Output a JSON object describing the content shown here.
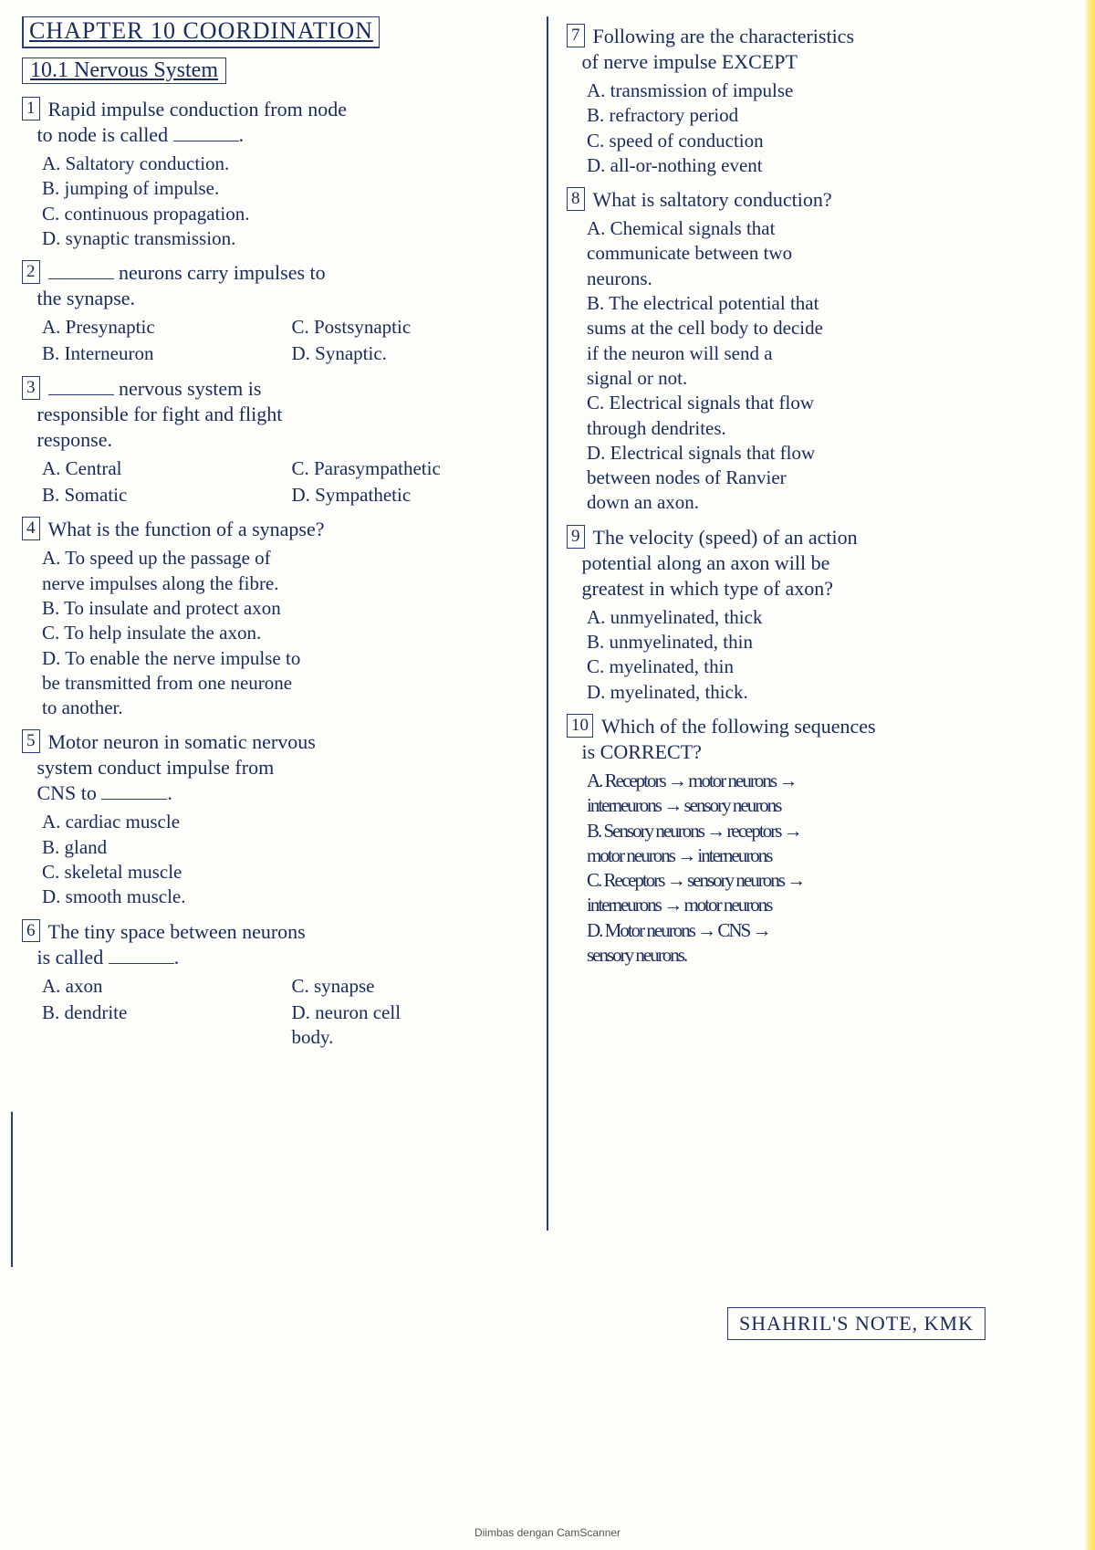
{
  "chapter_title": "CHAPTER 10   COORDINATION",
  "section_title": "10.1  Nervous System",
  "left": {
    "q1": {
      "num": "1",
      "text_a": "Rapid impulse conduction from node",
      "text_b": "to node is called",
      "opts": {
        "a": "A. Saltatory conduction.",
        "b": "B. jumping of impulse.",
        "c": "C. continuous propagation.",
        "d": "D. synaptic transmission."
      }
    },
    "q2": {
      "num": "2",
      "text_a": "",
      "text_b": "neurons carry impulses to",
      "text_c": "the synapse.",
      "opts": {
        "a": "A. Presynaptic",
        "c": "C. Postsynaptic",
        "b": "B. Interneuron",
        "d": "D. Synaptic."
      }
    },
    "q3": {
      "num": "3",
      "text_a": "",
      "text_b": "nervous system is",
      "text_c": "responsible for fight and flight",
      "text_d": "response.",
      "opts": {
        "a": "A. Central",
        "c": "C. Parasympathetic",
        "b": "B. Somatic",
        "d": "D. Sympathetic"
      }
    },
    "q4": {
      "num": "4",
      "text": "What is the function of a synapse?",
      "opts": {
        "a1": "A. To speed up the passage of",
        "a2": "    nerve impulses along the fibre.",
        "b": "B. To insulate and protect axon",
        "c": "C. To help insulate the axon.",
        "d1": "D. To enable the nerve impulse to",
        "d2": "    be transmitted from one neurone",
        "d3": "    to another."
      }
    },
    "q5": {
      "num": "5",
      "text_a": "Motor neuron in somatic nervous",
      "text_b": "system conduct impulse from",
      "text_c": "CNS to",
      "opts": {
        "a": "A. cardiac muscle",
        "b": "B. gland",
        "c": "C. skeletal muscle",
        "d": "D. smooth muscle."
      }
    },
    "q6": {
      "num": "6",
      "text_a": "The tiny space between neurons",
      "text_b": "is called",
      "opts": {
        "a": "A. axon",
        "c": "C. synapse",
        "b": "B. dendrite",
        "d1": "D. neuron cell",
        "d2": "    body."
      }
    }
  },
  "right": {
    "q7": {
      "num": "7",
      "text_a": "Following are the characteristics",
      "text_b": "of nerve impulse EXCEPT",
      "opts": {
        "a": "A. transmission of impulse",
        "b": "B. refractory period",
        "c": "C. speed of conduction",
        "d": "D. all-or-nothing event"
      }
    },
    "q8": {
      "num": "8",
      "text": "What is saltatory conduction?",
      "opts": {
        "a1": "A. Chemical signals that",
        "a2": "   communicate between two",
        "a3": "   neurons.",
        "b1": "B. The electrical potential that",
        "b2": "   sums at the cell body to decide",
        "b3": "   if the neuron will send a",
        "b4": "   signal or not.",
        "c1": "C. Electrical signals that flow",
        "c2": "   through dendrites.",
        "d1": "D. Electrical signals that flow",
        "d2": "   between nodes of Ranvier",
        "d3": "   down an axon."
      }
    },
    "q9": {
      "num": "9",
      "text_a": "The velocity (speed) of an action",
      "text_b": "potential along an axon will be",
      "text_c": "greatest in which type of axon?",
      "opts": {
        "a": "A. unmyelinated, thick",
        "b": "B. unmyelinated, thin",
        "c": "C. myelinated, thin",
        "d": "D. myelinated, thick."
      }
    },
    "q10": {
      "num": "10",
      "text_a": "Which of the following sequences",
      "text_b": "is CORRECT?",
      "opts": {
        "a1": "A. Receptors → motor neurons →",
        "a2": "   interneurons → sensory neurons",
        "b1": "B. Sensory neurons → receptors →",
        "b2": "   motor neurons → interneurons",
        "c1": "C. Receptors → sensory neurons →",
        "c2": "   interneurons → motor neurons",
        "d1": "D. Motor neurons → CNS →",
        "d2": "   sensory neurons."
      }
    }
  },
  "footer": "SHAHRIL'S NOTE, KMK",
  "scan_note": "Diimbas dengan CamScanner"
}
